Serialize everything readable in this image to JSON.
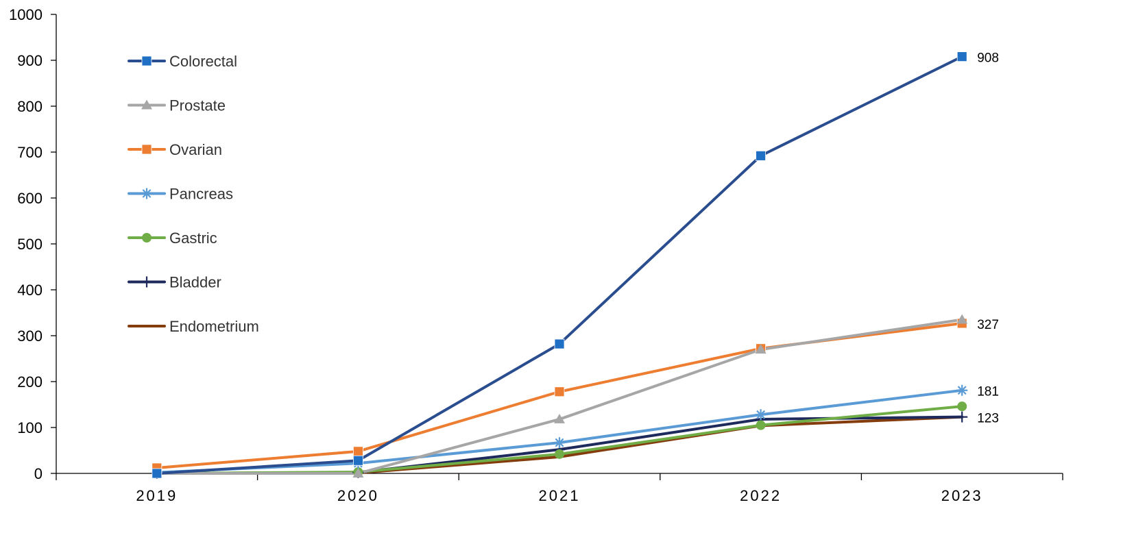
{
  "chart_data": {
    "type": "line",
    "categories": [
      "2019",
      "2020",
      "2021",
      "2022",
      "2023"
    ],
    "ylim": [
      0,
      1000
    ],
    "yticks": [
      0,
      100,
      200,
      300,
      400,
      500,
      600,
      700,
      800,
      900,
      1000
    ],
    "grid": false,
    "legend_position": "top-left",
    "series": [
      {
        "name": "Colorectal",
        "values": [
          0,
          28,
          282,
          692,
          908
        ],
        "color": "#2a4d8f",
        "marker": "square",
        "marker_color": "#1f6fc4"
      },
      {
        "name": "Prostate",
        "values": [
          0,
          0,
          118,
          270,
          335
        ],
        "color": "#a6a6a6",
        "marker": "triangle",
        "marker_color": "#a6a6a6"
      },
      {
        "name": "Ovarian",
        "values": [
          12,
          48,
          178,
          272,
          327
        ],
        "color": "#ed7d31",
        "marker": "square",
        "marker_color": "#ed7d31"
      },
      {
        "name": "Pancreas",
        "values": [
          2,
          22,
          67,
          128,
          181
        ],
        "color": "#5b9bd5",
        "marker": "asterisk",
        "marker_color": "#5b9bd5"
      },
      {
        "name": "Gastric",
        "values": [
          0,
          3,
          42,
          105,
          146
        ],
        "color": "#70ad47",
        "marker": "circle",
        "marker_color": "#70ad47"
      },
      {
        "name": "Bladder",
        "values": [
          0,
          2,
          52,
          118,
          123
        ],
        "color": "#1f2a5c",
        "marker": "plus",
        "marker_color": "#1f2a5c"
      },
      {
        "name": "Endometrium",
        "values": [
          0,
          1,
          36,
          104,
          123
        ],
        "color": "#843c0c",
        "marker": "none",
        "marker_color": "#843c0c"
      }
    ],
    "data_labels": [
      {
        "series": "Colorectal",
        "category": "2023",
        "text": "908"
      },
      {
        "series": "Ovarian",
        "category": "2023",
        "text": "327"
      },
      {
        "series": "Pancreas",
        "category": "2023",
        "text": "181"
      },
      {
        "series": "Bladder",
        "category": "2023",
        "text": "123"
      }
    ]
  }
}
